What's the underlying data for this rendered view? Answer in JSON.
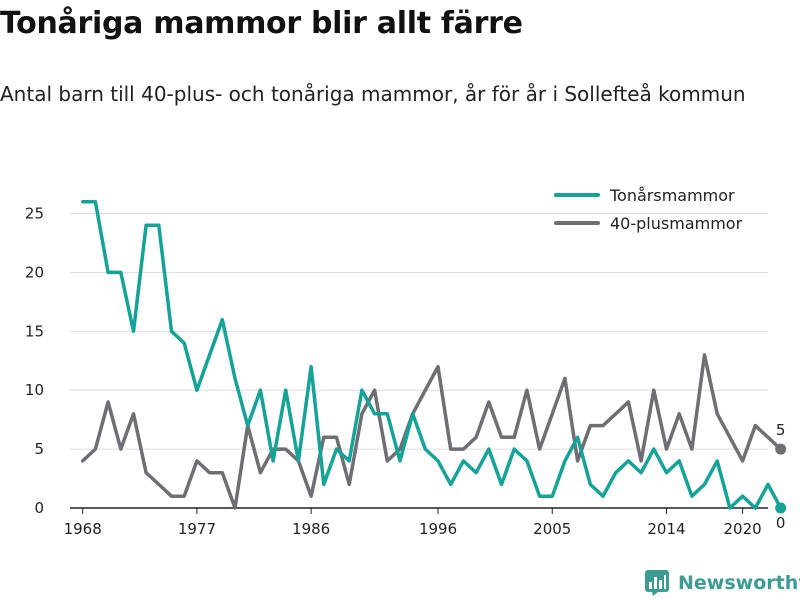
{
  "title": "Tonåriga mammor blir allt färre",
  "subtitle": "Antal barn till 40-plus- och tonåriga mammor, år för år i Sollefteå kommun",
  "brand": {
    "name": "Newsworthy",
    "color": "#3d9c92"
  },
  "chart_data": {
    "type": "line",
    "ylim": [
      0,
      27
    ],
    "xlim": [
      1967,
      2022
    ],
    "y_ticks": [
      0,
      5,
      10,
      15,
      20,
      25
    ],
    "x_ticks": [
      "1968",
      "1977",
      "1986",
      "1996",
      "2005",
      "2014",
      "2020"
    ],
    "grid": true,
    "legend_position": "top-right",
    "series": [
      {
        "name": "Tonårsmammor",
        "color": "#14a396",
        "x": [
          1968,
          1969,
          1970,
          1971,
          1972,
          1973,
          1974,
          1975,
          1976,
          1977,
          1978,
          1979,
          1980,
          1981,
          1982,
          1983,
          1984,
          1985,
          1986,
          1987,
          1988,
          1989,
          1990,
          1991,
          1992,
          1993,
          1994,
          1995,
          1996,
          1997,
          1998,
          1999,
          2000,
          2001,
          2002,
          2003,
          2004,
          2005,
          2006,
          2007,
          2008,
          2009,
          2010,
          2011,
          2012,
          2013,
          2014,
          2015,
          2016,
          2017,
          2018,
          2019,
          2020,
          2021,
          2022,
          2023
        ],
        "values": [
          26,
          26,
          20,
          20,
          15,
          24,
          24,
          15,
          14,
          10,
          13,
          16,
          11,
          7,
          10,
          4,
          10,
          4,
          12,
          2,
          5,
          4,
          10,
          8,
          8,
          4,
          8,
          5,
          4,
          2,
          4,
          3,
          5,
          2,
          5,
          4,
          1,
          1,
          4,
          6,
          2,
          1,
          3,
          4,
          3,
          5,
          3,
          4,
          1,
          2,
          4,
          0,
          1,
          0,
          2,
          0
        ]
      },
      {
        "name": "40-plusmammor",
        "color": "#6e6e73",
        "x": [
          1968,
          1969,
          1970,
          1971,
          1972,
          1973,
          1974,
          1975,
          1976,
          1977,
          1978,
          1979,
          1980,
          1981,
          1982,
          1983,
          1984,
          1985,
          1986,
          1987,
          1988,
          1989,
          1990,
          1991,
          1992,
          1993,
          1994,
          1995,
          1996,
          1997,
          1998,
          1999,
          2000,
          2001,
          2002,
          2003,
          2004,
          2005,
          2006,
          2007,
          2008,
          2009,
          2010,
          2011,
          2012,
          2013,
          2014,
          2015,
          2016,
          2017,
          2018,
          2019,
          2020,
          2021,
          2022,
          2023
        ],
        "values": [
          4,
          5,
          9,
          5,
          8,
          3,
          2,
          1,
          1,
          4,
          3,
          3,
          0,
          7,
          3,
          5,
          5,
          4,
          1,
          6,
          6,
          2,
          8,
          10,
          4,
          5,
          8,
          10,
          12,
          5,
          5,
          6,
          9,
          6,
          6,
          10,
          5,
          8,
          11,
          4,
          7,
          7,
          8,
          9,
          4,
          10,
          5,
          8,
          5,
          13,
          8,
          6,
          4,
          7,
          6,
          5
        ]
      }
    ],
    "end_labels": [
      {
        "series": "40-plusmammor",
        "value": "5"
      },
      {
        "series": "Tonårsmammor",
        "value": "0"
      }
    ]
  }
}
